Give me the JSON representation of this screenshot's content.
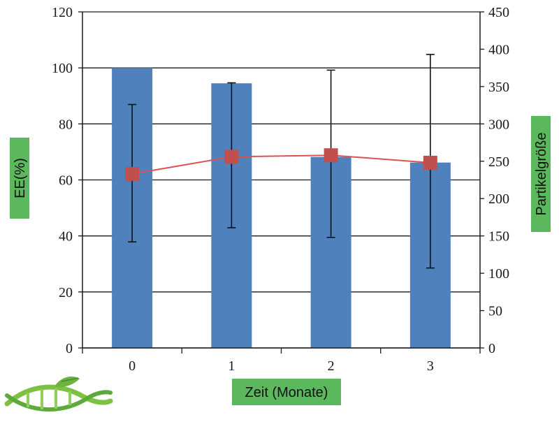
{
  "chart_data": {
    "type": "bar",
    "categories": [
      "0",
      "1",
      "2",
      "3"
    ],
    "xlabel": "Zeit (Monate)",
    "ylabel": "EE(%)",
    "y2label": "Partikelgröße",
    "ylim": [
      0,
      120
    ],
    "y2lim": [
      0,
      450
    ],
    "yticks": [
      "0",
      "20",
      "40",
      "60",
      "80",
      "100",
      "120"
    ],
    "y2ticks": [
      "0",
      "50",
      "100",
      "150",
      "200",
      "250",
      "300",
      "350",
      "400",
      "450"
    ],
    "grid": true,
    "series": [
      {
        "type": "bar",
        "axis": "left",
        "values": [
          100,
          94.5,
          68.2,
          66.2
        ]
      },
      {
        "type": "line",
        "axis": "right",
        "marker": "square",
        "values": [
          233,
          256,
          258,
          248
        ],
        "error_low": [
          142,
          161,
          148,
          107
        ],
        "error_high": [
          326,
          355,
          372,
          393
        ]
      }
    ],
    "colors": {
      "bar": "#4f81bd",
      "line": "#d9534f",
      "marker": "#c0504d",
      "error_bar": "#111111",
      "label_badge": "#5cb85c"
    }
  },
  "logo": {
    "name": "dna-leaf-logo",
    "colors": [
      "#7cc142",
      "#3f8f2f"
    ]
  }
}
